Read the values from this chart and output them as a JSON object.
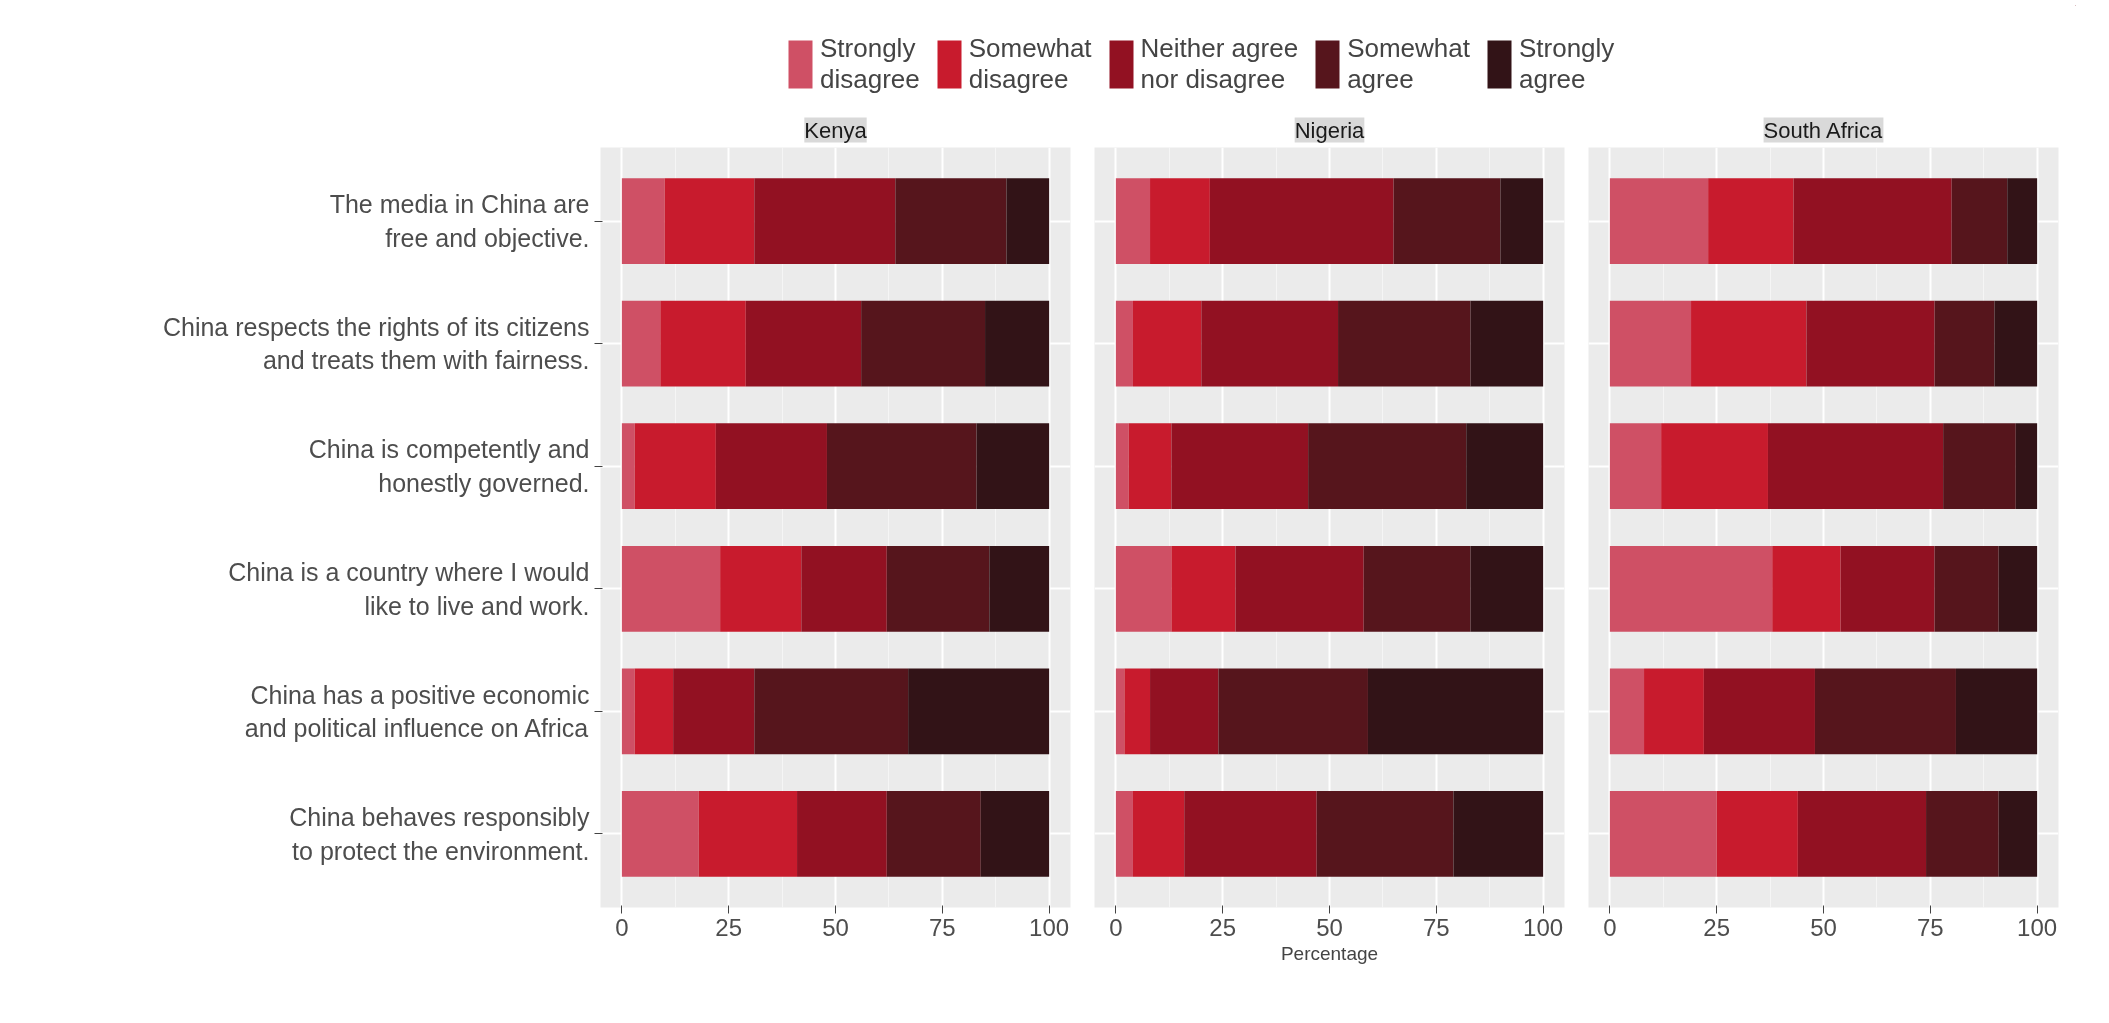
{
  "chart_data": [
    {
      "type": "bar",
      "orientation": "horizontal",
      "stacked": true,
      "title": "Kenya",
      "legend": "top",
      "grid": true,
      "tick_labels": "xy",
      "categories": [
        "The media in China are\nfree and objective.",
        "China respects the rights of its citizens\nand treats them with fairness.",
        "China is competently and\nhonestly governed.",
        "China is a country where I would\nlike to live and work.",
        "China has a positive economic\nand political influence on Africa",
        "China behaves responsibly\nto protect the environment."
      ],
      "xlim": [
        -5,
        105
      ],
      "xticks": [
        0,
        25,
        50,
        75,
        100
      ],
      "series": [
        {
          "name": "Strongly\ndisagree",
          "color": "#cf5065",
          "values": [
            10,
            9,
            3,
            23,
            3,
            18
          ]
        },
        {
          "name": "Somewhat\ndisagree",
          "color": "#c81b2d",
          "values": [
            21,
            20,
            19,
            19,
            9,
            23
          ]
        },
        {
          "name": "Neither agree\nnor disagree",
          "color": "#921122",
          "values": [
            33,
            27,
            26,
            20,
            19,
            21
          ]
        },
        {
          "name": "Somewhat\nagree",
          "color": "#56151c",
          "values": [
            26,
            29,
            35,
            24,
            36,
            22
          ]
        },
        {
          "name": "Strongly\nagree",
          "color": "#321317",
          "values": [
            10,
            15,
            17,
            14,
            33,
            16
          ]
        }
      ]
    },
    {
      "type": "bar",
      "orientation": "horizontal",
      "stacked": true,
      "title": "Nigeria",
      "xlabel": "Percentage",
      "grid": true,
      "tick_labels": "x",
      "xlim": [
        -5,
        105
      ],
      "xticks": [
        0,
        25,
        50,
        75,
        100
      ],
      "series": [
        {
          "color": "#cf5065",
          "values": [
            8,
            4,
            3,
            13,
            2,
            4
          ]
        },
        {
          "color": "#c81b2d",
          "values": [
            14,
            16,
            10,
            15,
            6,
            12
          ]
        },
        {
          "color": "#921122",
          "values": [
            43,
            32,
            32,
            30,
            16,
            31
          ]
        },
        {
          "color": "#56151c",
          "values": [
            25,
            31,
            37,
            25,
            35,
            32
          ]
        },
        {
          "color": "#321317",
          "values": [
            10,
            17,
            18,
            17,
            41,
            21
          ]
        }
      ]
    },
    {
      "type": "bar",
      "orientation": "horizontal",
      "stacked": true,
      "title": "South Africa",
      "grid": true,
      "tick_labels": "x",
      "xlim": [
        -5,
        105
      ],
      "xticks": [
        0,
        25,
        50,
        75,
        100
      ],
      "series": [
        {
          "color": "#cf5065",
          "values": [
            23,
            19,
            12,
            38,
            8,
            25
          ]
        },
        {
          "color": "#c81b2d",
          "values": [
            20,
            27,
            25,
            16,
            14,
            19
          ]
        },
        {
          "color": "#921122",
          "values": [
            37,
            30,
            41,
            22,
            26,
            30
          ]
        },
        {
          "color": "#56151c",
          "values": [
            13,
            14,
            17,
            15,
            33,
            17
          ]
        },
        {
          "color": "#321317",
          "values": [
            7,
            10,
            5,
            9,
            19,
            9
          ]
        }
      ]
    }
  ]
}
